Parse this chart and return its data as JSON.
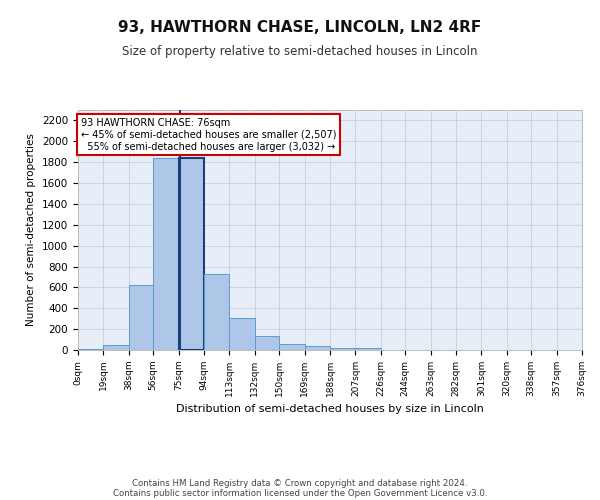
{
  "title": "93, HAWTHORN CHASE, LINCOLN, LN2 4RF",
  "subtitle": "Size of property relative to semi-detached houses in Lincoln",
  "xlabel": "Distribution of semi-detached houses by size in Lincoln",
  "ylabel": "Number of semi-detached properties",
  "property_size": 76,
  "property_label": "93 HAWTHORN CHASE: 76sqm",
  "pct_smaller": 45,
  "pct_larger": 55,
  "n_smaller": 2507,
  "n_larger": 3032,
  "bin_labels": [
    "0sqm",
    "19sqm",
    "38sqm",
    "56sqm",
    "75sqm",
    "94sqm",
    "113sqm",
    "132sqm",
    "150sqm",
    "169sqm",
    "188sqm",
    "207sqm",
    "226sqm",
    "244sqm",
    "263sqm",
    "282sqm",
    "301sqm",
    "320sqm",
    "338sqm",
    "357sqm",
    "376sqm"
  ],
  "bar_heights": [
    5,
    50,
    620,
    1840,
    1840,
    730,
    305,
    130,
    60,
    35,
    20,
    15,
    0,
    0,
    0,
    0,
    0,
    0,
    0,
    0
  ],
  "bar_color": "#aec6e8",
  "bar_edge_color": "#5b9bd5",
  "property_bar_edge_color": "#1a3f7a",
  "annotation_box_edge": "#cc0000",
  "grid_color": "#c8d4e8",
  "background_color": "#e8eef8",
  "ylim": [
    0,
    2300
  ],
  "yticks": [
    0,
    200,
    400,
    600,
    800,
    1000,
    1200,
    1400,
    1600,
    1800,
    2000,
    2200
  ],
  "bin_edges": [
    0,
    19,
    38,
    56,
    75,
    94,
    113,
    132,
    150,
    169,
    188,
    207,
    226,
    244,
    263,
    282,
    301,
    320,
    338,
    357,
    376
  ],
  "footer_line1": "Contains HM Land Registry data © Crown copyright and database right 2024.",
  "footer_line2": "Contains public sector information licensed under the Open Government Licence v3.0."
}
